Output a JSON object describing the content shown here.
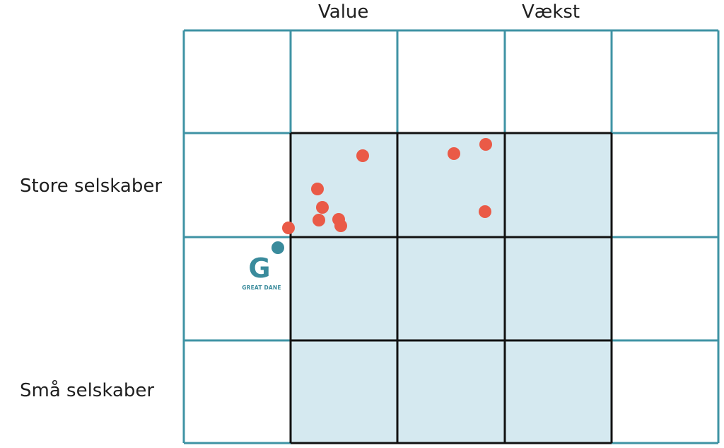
{
  "columns": {
    "value_label": "Value",
    "growth_label": "Vækst"
  },
  "rows": {
    "large_label": "Store selskaber",
    "small_label": "Små selskaber"
  },
  "logo": {
    "letter": "G",
    "text": "GREAT DANE",
    "dot_icon": "circle-dot-icon"
  },
  "colors": {
    "grid_line": "#3f93a4",
    "highlight_fill": "#d5e9f0",
    "highlight_border": "#111111",
    "holding_dot": "#ea5a47",
    "brand": "#3a8b9c"
  }
}
